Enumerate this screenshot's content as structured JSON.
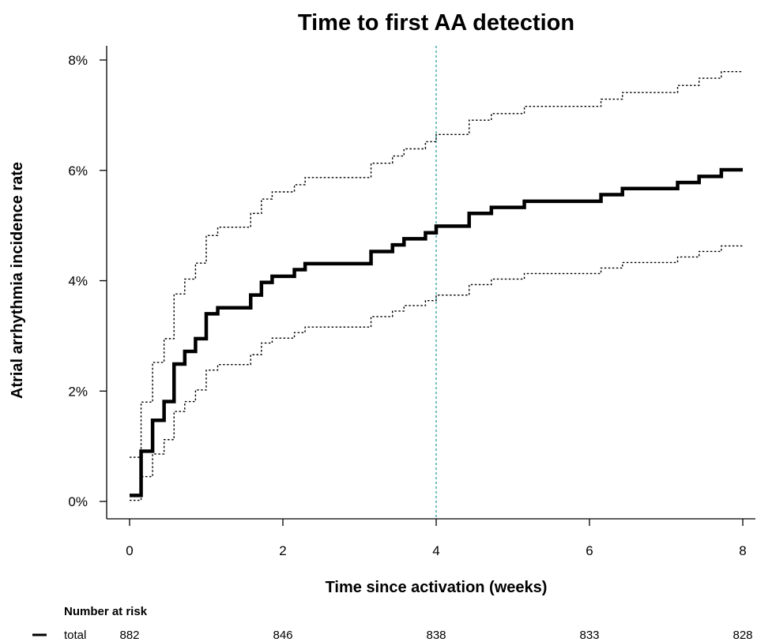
{
  "chart_data": {
    "type": "line",
    "title": "Time to first AA detection",
    "xlabel": "Time since activation (weeks)",
    "ylabel": "Atrial arrhythmia incidence rate",
    "xlim": [
      0,
      8
    ],
    "ylim": [
      0,
      8
    ],
    "x_ticks": [
      0,
      2,
      4,
      6,
      8
    ],
    "x_tick_labels": [
      "0",
      "2",
      "4",
      "6",
      "8"
    ],
    "y_ticks": [
      0,
      2,
      4,
      6,
      8
    ],
    "y_tick_labels": [
      "0%",
      "2%",
      "4%",
      "6%",
      "8%"
    ],
    "grid": false,
    "reference_line_x": 4,
    "reference_line_color": "#2a9d9d",
    "series": [
      {
        "style": "solid",
        "color": "#000000",
        "x": [
          0,
          0.15,
          0.3,
          0.45,
          0.58,
          0.72,
          0.86,
          1.0,
          1.15,
          1.58,
          1.72,
          1.86,
          2.15,
          2.29,
          3.15,
          3.43,
          3.58,
          3.86,
          4.0,
          4.43,
          4.72,
          5.15,
          6.15,
          6.43,
          7.15,
          7.43,
          7.72,
          8.0
        ],
        "y": [
          0.11,
          0.91,
          1.47,
          1.81,
          2.49,
          2.72,
          2.95,
          3.4,
          3.51,
          3.74,
          3.97,
          4.08,
          4.2,
          4.31,
          4.53,
          4.65,
          4.76,
          4.87,
          4.99,
          5.22,
          5.33,
          5.44,
          5.56,
          5.67,
          5.78,
          5.89,
          6.01,
          6.01
        ]
      },
      {
        "style": "dotted",
        "color": "#000000",
        "x": [
          0,
          0.15,
          0.3,
          0.45,
          0.58,
          0.72,
          0.86,
          1.0,
          1.15,
          1.58,
          1.72,
          1.86,
          2.15,
          2.29,
          3.15,
          3.43,
          3.58,
          3.86,
          4.0,
          4.43,
          4.72,
          5.15,
          6.15,
          6.43,
          7.15,
          7.43,
          7.72,
          8.0
        ],
        "y": [
          0.8,
          1.8,
          2.52,
          2.95,
          3.76,
          4.03,
          4.32,
          4.82,
          4.97,
          5.22,
          5.48,
          5.61,
          5.74,
          5.87,
          6.13,
          6.26,
          6.39,
          6.52,
          6.65,
          6.91,
          7.03,
          7.16,
          7.29,
          7.41,
          7.54,
          7.67,
          7.79,
          7.79
        ]
      },
      {
        "style": "dotted",
        "color": "#000000",
        "x": [
          0,
          0.15,
          0.3,
          0.45,
          0.58,
          0.72,
          0.86,
          1.0,
          1.15,
          1.58,
          1.72,
          1.86,
          2.15,
          2.29,
          3.15,
          3.43,
          3.58,
          3.86,
          4.0,
          4.43,
          4.72,
          5.15,
          6.15,
          6.43,
          7.15,
          7.43,
          7.72,
          8.0
        ],
        "y": [
          0.02,
          0.45,
          0.86,
          1.12,
          1.63,
          1.81,
          2.02,
          2.38,
          2.48,
          2.66,
          2.87,
          2.96,
          3.06,
          3.16,
          3.35,
          3.45,
          3.55,
          3.64,
          3.74,
          3.93,
          4.03,
          4.13,
          4.23,
          4.33,
          4.43,
          4.53,
          4.63,
          4.63
        ]
      }
    ],
    "risk_table": {
      "title": "Number at risk",
      "row_label": "total",
      "x": [
        0,
        2,
        4,
        6,
        8
      ],
      "values": [
        "882",
        "846",
        "838",
        "833",
        "828"
      ]
    }
  }
}
